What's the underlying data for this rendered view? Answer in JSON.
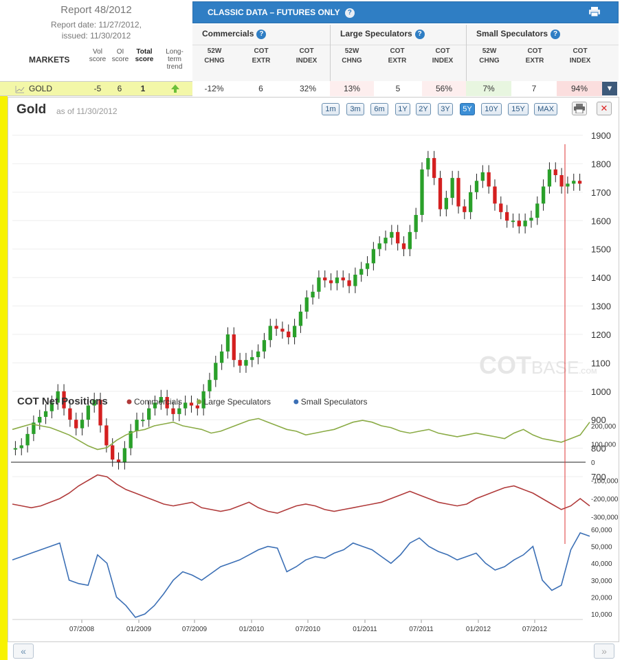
{
  "report": {
    "title": "Report 48/2012",
    "date_line1": "Report date: 11/27/2012,",
    "date_line2": "issued: 11/30/2012",
    "markets_label": "MARKETS",
    "col_vol": "Vol score",
    "col_oi": "OI score",
    "col_total": "Total score",
    "col_trend": "Long-term trend"
  },
  "header": {
    "title": "CLASSIC DATA – FUTURES ONLY",
    "groups": [
      {
        "name": "Commercials"
      },
      {
        "name": "Large Speculators"
      },
      {
        "name": "Small Speculators"
      }
    ],
    "sub": {
      "chng": "52W CHNG",
      "extr": "COT EXTR",
      "index": "COT INDEX"
    }
  },
  "gold_row": {
    "name": "GOLD",
    "vol": "-5",
    "oi": "6",
    "total": "1",
    "comm_chng": "-12%",
    "comm_extr": "6",
    "comm_index": "32%",
    "lspec_chng": "13%",
    "lspec_extr": "5",
    "lspec_index": "56%",
    "sspec_chng": "7%",
    "sspec_extr": "7",
    "sspec_index": "94%"
  },
  "chart": {
    "title": "Gold",
    "asof": "as of 11/30/2012",
    "ranges": [
      "1m",
      "3m",
      "6m",
      "1Y",
      "2Y",
      "3Y",
      "5Y",
      "10Y",
      "15Y",
      "MAX"
    ],
    "selected_range": "5Y",
    "watermark_a": "COT",
    "watermark_b": "BASE",
    "watermark_c": ".COM",
    "cot_title": "COT Net Positions",
    "legend": [
      {
        "name": "Commercials",
        "color": "#b03a3a"
      },
      {
        "name": "Large Speculators",
        "color": "#8aab45"
      },
      {
        "name": "Small Speculators",
        "color": "#3b6fb5"
      }
    ]
  },
  "chart_data": {
    "type": "line",
    "price_axis": {
      "ticks": [
        700,
        800,
        900,
        1000,
        1100,
        1200,
        1300,
        1400,
        1500,
        1600,
        1700,
        1800,
        1900
      ],
      "ylim": [
        650,
        1930
      ]
    },
    "x_ticks": [
      "07/2008",
      "01/2009",
      "07/2009",
      "01/2010",
      "07/2010",
      "01/2011",
      "07/2011",
      "01/2012",
      "07/2012"
    ],
    "price_series": {
      "name": "Gold",
      "values": [
        800,
        810,
        850,
        890,
        910,
        930,
        960,
        1000,
        940,
        900,
        870,
        900,
        950,
        970,
        880,
        810,
        760,
        750,
        800,
        860,
        900,
        900,
        940,
        960,
        980,
        940,
        920,
        940,
        960,
        950,
        940,
        1000,
        1040,
        1100,
        1140,
        1200,
        1110,
        1090,
        1110,
        1120,
        1140,
        1180,
        1230,
        1220,
        1210,
        1190,
        1230,
        1280,
        1330,
        1350,
        1400,
        1390,
        1380,
        1400,
        1390,
        1370,
        1410,
        1430,
        1450,
        1500,
        1520,
        1540,
        1560,
        1520,
        1500,
        1560,
        1620,
        1780,
        1820,
        1750,
        1640,
        1680,
        1750,
        1650,
        1630,
        1700,
        1740,
        1770,
        1720,
        1660,
        1630,
        1600,
        1600,
        1580,
        1600,
        1610,
        1660,
        1720,
        1780,
        1760,
        1720,
        1730,
        1740,
        1730
      ]
    },
    "cot_axis_upper": {
      "ticks": [
        200000,
        100000,
        0,
        -100000,
        -200000,
        -300000
      ],
      "ylim": [
        -330000,
        280000
      ]
    },
    "cot_axis_small": {
      "ticks": [
        60000,
        50000,
        40000,
        30000,
        20000,
        10000
      ],
      "ylim": [
        5000,
        62000
      ]
    },
    "series": [
      {
        "name": "Large Speculators",
        "values": [
          180000,
          195000,
          210000,
          200000,
          190000,
          170000,
          150000,
          120000,
          90000,
          70000,
          80000,
          120000,
          150000,
          170000,
          180000,
          200000,
          210000,
          220000,
          200000,
          190000,
          180000,
          160000,
          170000,
          190000,
          210000,
          230000,
          240000,
          220000,
          200000,
          180000,
          170000,
          150000,
          160000,
          170000,
          180000,
          200000,
          220000,
          230000,
          220000,
          200000,
          190000,
          170000,
          160000,
          170000,
          180000,
          160000,
          150000,
          140000,
          150000,
          160000,
          150000,
          140000,
          130000,
          160000,
          180000,
          150000,
          130000,
          120000,
          110000,
          130000,
          150000,
          220000
        ]
      },
      {
        "name": "Commercials",
        "values": [
          -230000,
          -240000,
          -250000,
          -240000,
          -220000,
          -200000,
          -170000,
          -130000,
          -100000,
          -70000,
          -80000,
          -120000,
          -150000,
          -170000,
          -190000,
          -210000,
          -230000,
          -240000,
          -230000,
          -220000,
          -250000,
          -260000,
          -270000,
          -260000,
          -240000,
          -220000,
          -250000,
          -270000,
          -280000,
          -260000,
          -240000,
          -230000,
          -240000,
          -260000,
          -270000,
          -260000,
          -250000,
          -240000,
          -230000,
          -220000,
          -200000,
          -180000,
          -160000,
          -180000,
          -200000,
          -220000,
          -230000,
          -240000,
          -230000,
          -200000,
          -180000,
          -160000,
          -140000,
          -130000,
          -150000,
          -170000,
          -200000,
          -230000,
          -260000,
          -240000,
          -200000,
          -240000
        ]
      },
      {
        "name": "Small Speculators",
        "values": [
          42000,
          44000,
          46000,
          48000,
          50000,
          52000,
          30000,
          28000,
          27000,
          45000,
          40000,
          20000,
          15000,
          8000,
          10000,
          15000,
          22000,
          30000,
          35000,
          33000,
          30000,
          34000,
          38000,
          40000,
          42000,
          45000,
          48000,
          50000,
          49000,
          35000,
          38000,
          42000,
          44000,
          43000,
          46000,
          48000,
          52000,
          50000,
          48000,
          44000,
          40000,
          45000,
          52000,
          55000,
          50000,
          47000,
          45000,
          42000,
          44000,
          46000,
          40000,
          36000,
          38000,
          42000,
          45000,
          50000,
          30000,
          24000,
          27000,
          48000,
          58000,
          56000
        ]
      }
    ]
  }
}
